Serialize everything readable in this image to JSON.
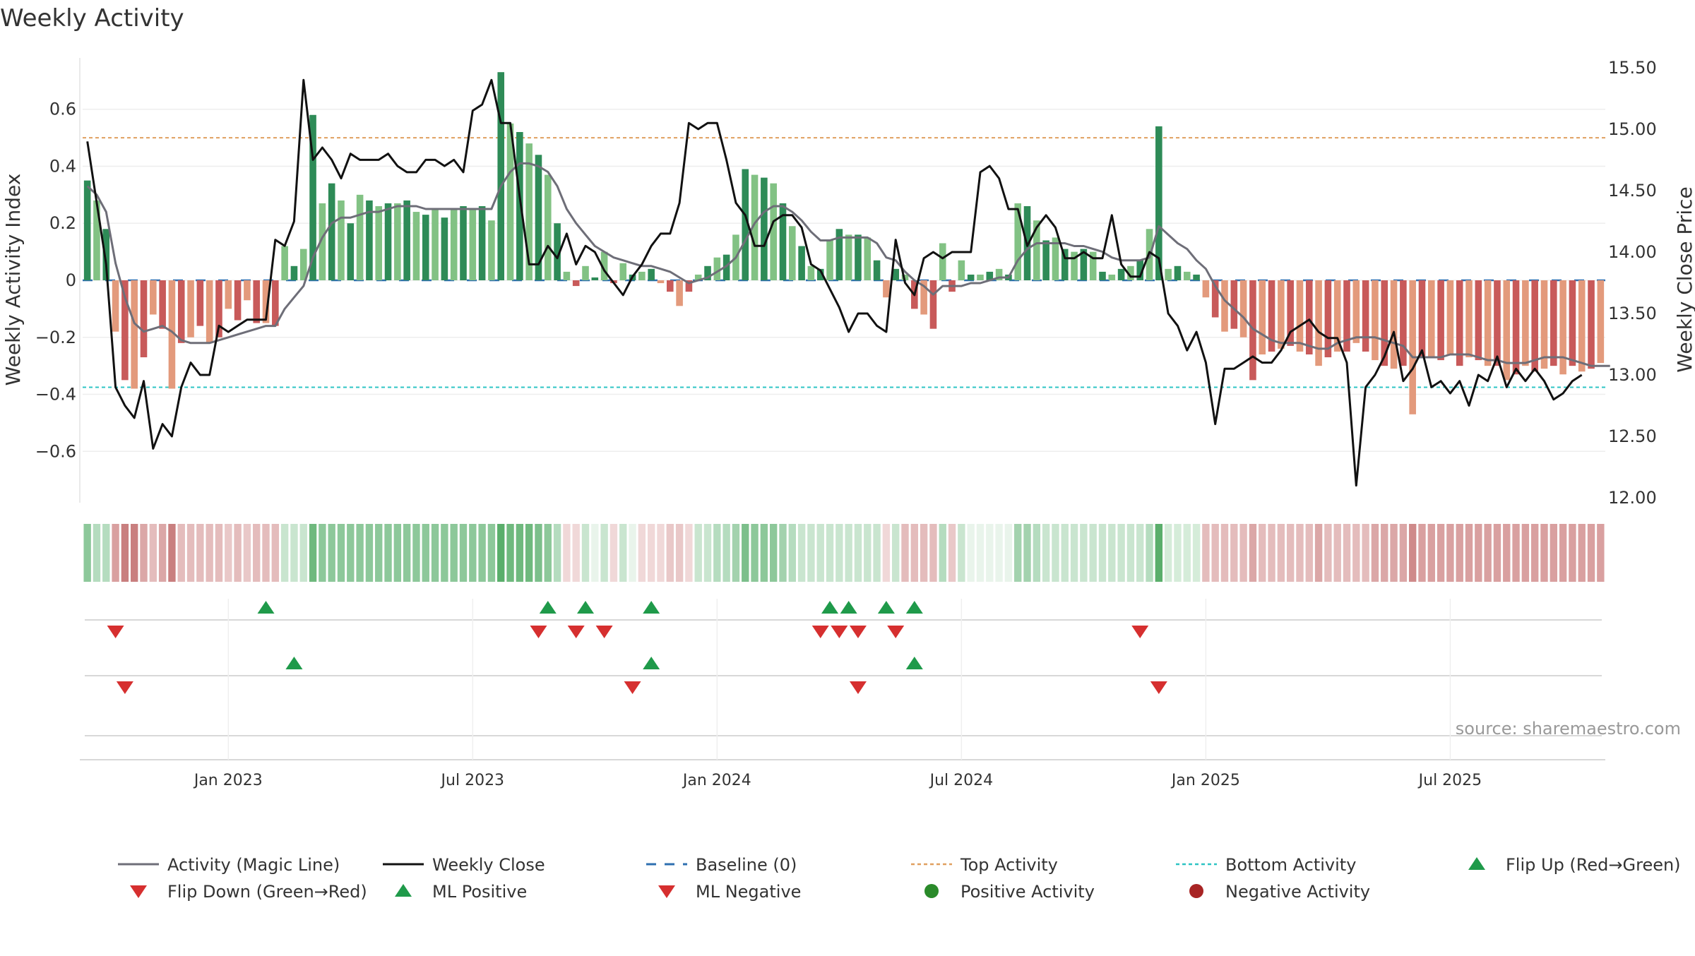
{
  "chart_data": {
    "type": "bar",
    "title": "Weekly Activity",
    "ylabel": "Weekly Activity Index",
    "y2label": "Weekly Close Price",
    "ylim": [
      -0.78,
      0.78
    ],
    "y2lim": [
      11.96,
      15.58
    ],
    "y_ticks": [
      0.6,
      0.4,
      0.2,
      0,
      -0.2,
      -0.4,
      -0.6
    ],
    "y_tick_labels": [
      "0.6",
      "0.4",
      "0.2",
      "0",
      "−0.2",
      "−0.4",
      "−0.6"
    ],
    "y2_ticks": [
      15.5,
      15.0,
      14.5,
      14.0,
      13.5,
      13.0,
      12.5,
      12.0
    ],
    "y2_tick_labels": [
      "15.50",
      "15.00",
      "14.50",
      "14.00",
      "13.50",
      "13.00",
      "12.50",
      "12.00"
    ],
    "x_ticks": [
      {
        "label": "Jan 2023",
        "week": 15
      },
      {
        "label": "Jul 2023",
        "week": 41
      },
      {
        "label": "Jan 2024",
        "week": 67
      },
      {
        "label": "Jul 2024",
        "week": 93
      },
      {
        "label": "Jan 2025",
        "week": 119
      },
      {
        "label": "Jul 2025",
        "week": 145
      }
    ],
    "top_activity": 0.5,
    "bottom_activity": -0.375,
    "baseline": 0,
    "activity": [
      0.35,
      0.28,
      0.18,
      -0.18,
      -0.35,
      -0.38,
      -0.27,
      -0.12,
      -0.17,
      -0.38,
      -0.22,
      -0.2,
      -0.16,
      -0.22,
      -0.2,
      -0.1,
      -0.14,
      -0.07,
      -0.15,
      -0.15,
      -0.16,
      0.12,
      0.05,
      0.11,
      0.58,
      0.27,
      0.34,
      0.28,
      0.2,
      0.3,
      0.28,
      0.26,
      0.27,
      0.27,
      0.28,
      0.24,
      0.23,
      0.25,
      0.22,
      0.25,
      0.26,
      0.25,
      0.26,
      0.21,
      0.73,
      0.55,
      0.52,
      0.48,
      0.44,
      0.37,
      0.2,
      0.03,
      -0.02,
      0.05,
      0.01,
      0.1,
      -0.01,
      0.06,
      0.02,
      0.03,
      0.04,
      -0.01,
      -0.04,
      -0.09,
      -0.04,
      0.02,
      0.05,
      0.08,
      0.09,
      0.16,
      0.39,
      0.37,
      0.36,
      0.34,
      0.27,
      0.19,
      0.12,
      0.05,
      0.04,
      0.14,
      0.18,
      0.16,
      0.16,
      0.15,
      0.07,
      -0.06,
      0.04,
      0.02,
      -0.1,
      -0.12,
      -0.17,
      0.13,
      -0.04,
      0.07,
      0.02,
      0.02,
      0.03,
      0.04,
      0.02,
      0.27,
      0.26,
      0.21,
      0.14,
      0.15,
      0.11,
      0.1,
      0.11,
      0.1,
      0.03,
      0.02,
      0.04,
      0.05,
      0.07,
      0.18,
      0.54,
      0.04,
      0.05,
      0.03,
      0.02,
      -0.06,
      -0.13,
      -0.18,
      -0.17,
      -0.2,
      -0.35,
      -0.26,
      -0.25,
      -0.24,
      -0.23,
      -0.25,
      -0.26,
      -0.3,
      -0.27,
      -0.25,
      -0.25,
      -0.22,
      -0.25,
      -0.28,
      -0.3,
      -0.31,
      -0.3,
      -0.47,
      -0.27,
      -0.27,
      -0.28,
      -0.26,
      -0.3,
      -0.27,
      -0.28,
      -0.3,
      -0.3,
      -0.35,
      -0.33,
      -0.3,
      -0.32,
      -0.31,
      -0.3,
      -0.33,
      -0.3,
      -0.32,
      -0.31,
      -0.29
    ],
    "magic_line": [
      0.33,
      0.3,
      0.24,
      0.06,
      -0.06,
      -0.15,
      -0.18,
      -0.17,
      -0.16,
      -0.18,
      -0.21,
      -0.22,
      -0.22,
      -0.22,
      -0.21,
      -0.2,
      -0.19,
      -0.18,
      -0.17,
      -0.16,
      -0.16,
      -0.1,
      -0.06,
      -0.02,
      0.08,
      0.15,
      0.2,
      0.22,
      0.22,
      0.23,
      0.24,
      0.24,
      0.25,
      0.26,
      0.26,
      0.26,
      0.25,
      0.25,
      0.25,
      0.25,
      0.25,
      0.25,
      0.25,
      0.25,
      0.33,
      0.38,
      0.41,
      0.41,
      0.4,
      0.38,
      0.33,
      0.25,
      0.2,
      0.16,
      0.12,
      0.1,
      0.08,
      0.07,
      0.06,
      0.05,
      0.05,
      0.04,
      0.03,
      0.01,
      -0.01,
      0.0,
      0.01,
      0.03,
      0.05,
      0.08,
      0.14,
      0.2,
      0.24,
      0.26,
      0.26,
      0.24,
      0.21,
      0.17,
      0.14,
      0.14,
      0.15,
      0.15,
      0.15,
      0.15,
      0.13,
      0.08,
      0.07,
      0.03,
      0.0,
      -0.02,
      -0.05,
      -0.02,
      -0.02,
      -0.02,
      -0.01,
      -0.01,
      0.0,
      0.01,
      0.01,
      0.07,
      0.11,
      0.13,
      0.13,
      0.13,
      0.13,
      0.12,
      0.12,
      0.11,
      0.1,
      0.08,
      0.07,
      0.07,
      0.07,
      0.08,
      0.19,
      0.16,
      0.13,
      0.11,
      0.07,
      0.04,
      -0.02,
      -0.07,
      -0.1,
      -0.13,
      -0.17,
      -0.19,
      -0.21,
      -0.22,
      -0.22,
      -0.22,
      -0.23,
      -0.24,
      -0.24,
      -0.22,
      -0.21,
      -0.2,
      -0.2,
      -0.2,
      -0.21,
      -0.22,
      -0.23,
      -0.27,
      -0.27,
      -0.27,
      -0.27,
      -0.26,
      -0.26,
      -0.26,
      -0.27,
      -0.28,
      -0.28,
      -0.29,
      -0.29,
      -0.29,
      -0.28,
      -0.27,
      -0.27,
      -0.27,
      -0.28,
      -0.29,
      -0.3,
      -0.3,
      -0.3
    ],
    "weekly_close": [
      14.9,
      14.4,
      13.9,
      12.9,
      12.75,
      12.65,
      12.95,
      12.4,
      12.6,
      12.5,
      12.9,
      13.1,
      13.0,
      13.0,
      13.4,
      13.35,
      13.4,
      13.45,
      13.45,
      13.45,
      14.1,
      14.05,
      14.25,
      15.4,
      14.75,
      14.85,
      14.75,
      14.6,
      14.8,
      14.75,
      14.75,
      14.75,
      14.8,
      14.7,
      14.65,
      14.65,
      14.75,
      14.75,
      14.7,
      14.75,
      14.65,
      15.15,
      15.2,
      15.4,
      15.05,
      15.05,
      14.45,
      13.9,
      13.9,
      14.05,
      13.95,
      14.15,
      13.9,
      14.05,
      14.0,
      13.85,
      13.75,
      13.65,
      13.8,
      13.9,
      14.05,
      14.15,
      14.15,
      14.4,
      15.05,
      15.0,
      15.05,
      15.05,
      14.75,
      14.4,
      14.3,
      14.05,
      14.05,
      14.25,
      14.3,
      14.3,
      14.2,
      13.9,
      13.85,
      13.7,
      13.55,
      13.35,
      13.5,
      13.5,
      13.4,
      13.35,
      14.1,
      13.75,
      13.65,
      13.95,
      14.0,
      13.95,
      14.0,
      14.0,
      14.0,
      14.65,
      14.7,
      14.6,
      14.35,
      14.35,
      14.05,
      14.2,
      14.3,
      14.2,
      13.95,
      13.95,
      14.0,
      13.95,
      13.95,
      14.3,
      13.9,
      13.8,
      13.8,
      14.0,
      13.95,
      13.5,
      13.4,
      13.2,
      13.35,
      13.1,
      12.6,
      13.05,
      13.05,
      13.1,
      13.15,
      13.1,
      13.1,
      13.2,
      13.35,
      13.4,
      13.45,
      13.35,
      13.3,
      13.3,
      13.1,
      12.1,
      12.9,
      13.0,
      13.15,
      13.35,
      12.95,
      13.05,
      13.2,
      12.9,
      12.95,
      12.85,
      12.95,
      12.75,
      13.0,
      12.95,
      13.15,
      12.9,
      13.05,
      12.95,
      13.05,
      12.95,
      12.8,
      12.85,
      12.95,
      13.0
    ],
    "strip_colors": [
      "#8dc89a",
      "#b5dcbf",
      "#b5dcbf",
      "#d9a0a0",
      "#c97f7f",
      "#c97f7f",
      "#dba7a7",
      "#e4bcbc",
      "#dba7a7",
      "#c97f7f",
      "#e4bcbc",
      "#e4bcbc",
      "#e4bcbc",
      "#e4bcbc",
      "#e4bcbc",
      "#e9c8c8",
      "#e4bcbc",
      "#e9c8c8",
      "#e4bcbc",
      "#e4bcbc",
      "#e4bcbc",
      "#c9e5cf",
      "#c9e5cf",
      "#c9e5cf",
      "#6fb97e",
      "#8dc89a",
      "#8dc89a",
      "#8dc89a",
      "#8dc89a",
      "#8dc89a",
      "#8dc89a",
      "#8dc89a",
      "#8dc89a",
      "#8dc89a",
      "#8dc89a",
      "#8dc89a",
      "#8dc89a",
      "#8dc89a",
      "#8dc89a",
      "#8dc89a",
      "#8dc89a",
      "#8dc89a",
      "#8dc89a",
      "#8dc89a",
      "#5aae6b",
      "#6fb97e",
      "#6fb97e",
      "#6fb97e",
      "#7cbf8b",
      "#8dc89a",
      "#b5dcbf",
      "#f0d8d8",
      "#f0d8d8",
      "#c9e5cf",
      "#e9f4eb",
      "#c9e5cf",
      "#f0d8d8",
      "#c9e5cf",
      "#e9f4eb",
      "#f0d8d8",
      "#f0d8d8",
      "#f0d8d8",
      "#e9c8c8",
      "#e9c8c8",
      "#f0d8d8",
      "#c9e5cf",
      "#c9e5cf",
      "#b5dcbf",
      "#b5dcbf",
      "#a3d2ae",
      "#7cbf8b",
      "#8dc89a",
      "#8dc89a",
      "#8dc89a",
      "#a3d2ae",
      "#b5dcbf",
      "#c9e5cf",
      "#c9e5cf",
      "#c9e5cf",
      "#c9e5cf",
      "#c9e5cf",
      "#c9e5cf",
      "#c9e5cf",
      "#c9e5cf",
      "#c9e5cf",
      "#f0d8d8",
      "#c9e5cf",
      "#e4bcbc",
      "#e4bcbc",
      "#e4bcbc",
      "#e4bcbc",
      "#b5dcbf",
      "#e9c8c8",
      "#c9e5cf",
      "#e9f4eb",
      "#e9f4eb",
      "#e9f4eb",
      "#e9f4eb",
      "#e9f4eb",
      "#a3d2ae",
      "#a3d2ae",
      "#b5dcbf",
      "#c9e5cf",
      "#c9e5cf",
      "#c9e5cf",
      "#c9e5cf",
      "#c9e5cf",
      "#c9e5cf",
      "#c9e5cf",
      "#c9e5cf",
      "#c9e5cf",
      "#c9e5cf",
      "#c9e5cf",
      "#b5dcbf",
      "#5aae6b",
      "#d5ecd9",
      "#d5ecd9",
      "#d5ecd9",
      "#d5ecd9",
      "#e4bcbc",
      "#e4bcbc",
      "#e4bcbc",
      "#e4bcbc",
      "#e4bcbc",
      "#dba7a7",
      "#e4bcbc",
      "#e4bcbc",
      "#e4bcbc",
      "#e4bcbc",
      "#e4bcbc",
      "#e4bcbc",
      "#dba7a7",
      "#e4bcbc",
      "#e4bcbc",
      "#e4bcbc",
      "#e4bcbc",
      "#e4bcbc",
      "#dba7a7",
      "#dba7a7",
      "#dba7a7",
      "#dba7a7",
      "#cf8a8a",
      "#d9a0a0",
      "#d9a0a0",
      "#d9a0a0",
      "#d9a0a0",
      "#d9a0a0",
      "#d9a0a0",
      "#d9a0a0",
      "#d9a0a0",
      "#d9a0a0",
      "#d9a0a0",
      "#d9a0a0",
      "#d9a0a0",
      "#d9a0a0",
      "#d9a0a0",
      "#d9a0a0",
      "#d9a0a0",
      "#d9a0a0",
      "#d9a0a0",
      "#d9a0a0",
      "#d9a0a0"
    ],
    "flip_up": [
      19,
      49,
      53,
      60,
      79,
      81,
      85,
      88
    ],
    "flip_down": [
      3,
      48,
      52,
      55,
      78,
      80,
      82,
      86,
      112
    ],
    "ml_positive": [
      22,
      60,
      88
    ],
    "ml_negative": [
      4,
      58,
      82,
      114
    ],
    "source": "source: sharemaestro.com",
    "legend": [
      {
        "label": "Activity (Magic Line)",
        "kind": "line",
        "color": "#6e6e78"
      },
      {
        "label": "Weekly Close",
        "kind": "line",
        "color": "#111111"
      },
      {
        "label": "Baseline (0)",
        "kind": "dash",
        "color": "#2e6fb0"
      },
      {
        "label": "Top Activity",
        "kind": "dot",
        "color": "#e0a060"
      },
      {
        "label": "Bottom Activity",
        "kind": "dot",
        "color": "#2ec4c4"
      },
      {
        "label": "Flip Up (Red→Green)",
        "kind": "tri-up",
        "color": "#1f9a4a"
      },
      {
        "label": "Flip Down (Green→Red)",
        "kind": "tri-down",
        "color": "#d62f2f"
      },
      {
        "label": "ML Positive",
        "kind": "tri-up",
        "color": "#1f9a4a"
      },
      {
        "label": "ML Negative",
        "kind": "tri-down",
        "color": "#d62f2f"
      },
      {
        "label": "Positive Activity",
        "kind": "circle",
        "color": "#2a8a2a"
      },
      {
        "label": "Negative Activity",
        "kind": "circle",
        "color": "#a82424"
      }
    ],
    "colors": {
      "pos_strong": "#2e8b57",
      "pos_light": "#82c284",
      "neg_strong": "#c85a5a",
      "neg_light": "#e39a7c",
      "grid": "#eeeeee",
      "text": "#333333"
    }
  }
}
